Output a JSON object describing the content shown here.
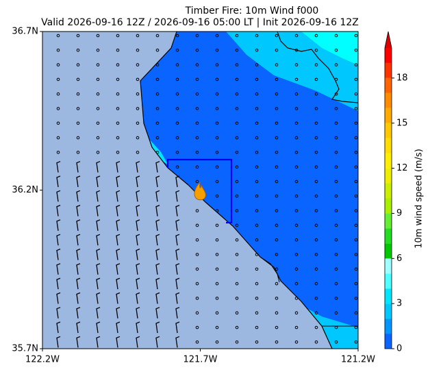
{
  "chart_data": {
    "type": "map",
    "title": "Timber Fire: 10m Wind f000",
    "subtitle": "Valid 2026-09-16 12Z / 2026-09-16 05:00 LT | Init 2026-09-16 12Z",
    "xlim": [
      -122.2,
      -121.2
    ],
    "ylim": [
      35.7,
      36.7
    ],
    "xticks": [
      {
        "value": -122.2,
        "label": "122.2W"
      },
      {
        "value": -121.7,
        "label": "121.7W"
      },
      {
        "value": -121.2,
        "label": "121.2W"
      }
    ],
    "yticks": [
      {
        "value": 35.7,
        "label": "35.7N"
      },
      {
        "value": 36.2,
        "label": "36.2N"
      },
      {
        "value": 36.7,
        "label": "36.7N"
      }
    ],
    "colorbar": {
      "label": "10m wind speed (m/s)",
      "clim": [
        0,
        20
      ],
      "ticks": [
        0,
        3,
        6,
        9,
        12,
        15,
        18
      ],
      "colors": [
        "#0a64ff",
        "#0096ff",
        "#00c8ff",
        "#00e6ff",
        "#50ffff",
        "#a0ffff",
        "#00c800",
        "#22dd22",
        "#66ee33",
        "#aaee00",
        "#ccee00",
        "#eeee00",
        "#ffee00",
        "#ffdd00",
        "#ffc800",
        "#ffaa00",
        "#ff8c00",
        "#ff6400",
        "#ff3200",
        "#ff0000"
      ],
      "extend_color": "#dd0000"
    }
  }
}
